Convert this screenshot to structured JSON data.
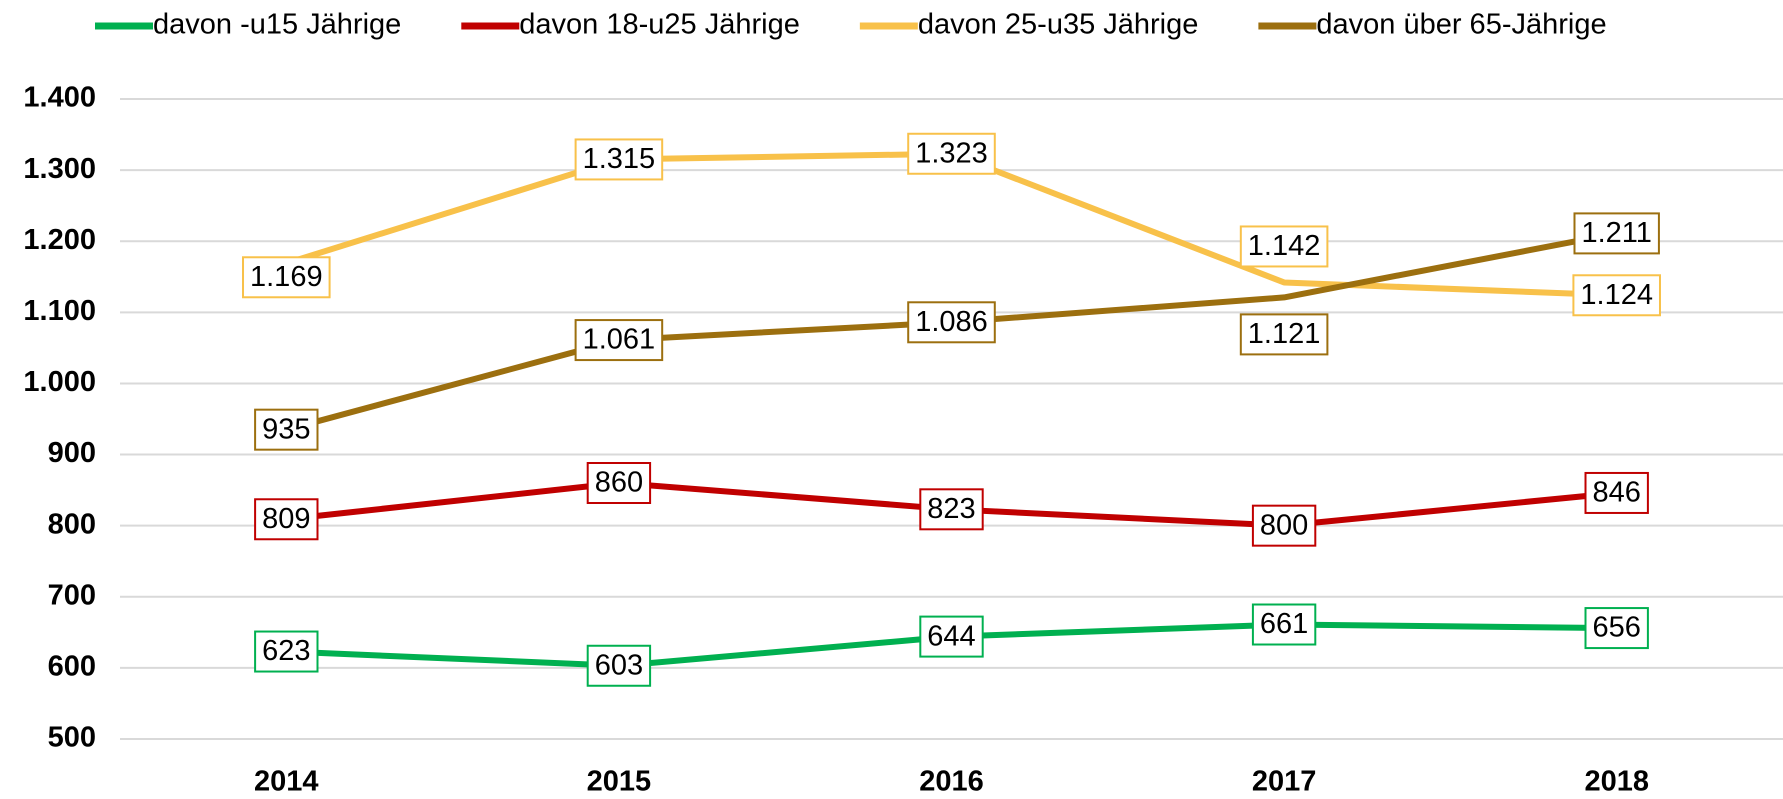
{
  "chart_data": {
    "type": "line",
    "categories": [
      "2014",
      "2015",
      "2016",
      "2017",
      "2018"
    ],
    "series": [
      {
        "name": "davon -u15 Jährige",
        "color": "#00b050",
        "values": [
          623,
          603,
          644,
          661,
          656
        ]
      },
      {
        "name": "davon 18-u25 Jährige",
        "color": "#c00000",
        "values": [
          809,
          860,
          823,
          800,
          846
        ]
      },
      {
        "name": "davon 25-u35 Jährige",
        "color": "#f8c14a",
        "values": [
          1169,
          1315,
          1323,
          1142,
          1124
        ],
        "value_labels": [
          "1.169",
          "1.315",
          "1.323",
          "1.142",
          "1.124"
        ]
      },
      {
        "name": "davon über 65-Jährige",
        "color": "#9c6f0f",
        "values": [
          935,
          1061,
          1086,
          1121,
          1211
        ],
        "value_labels": [
          "935",
          "1.061",
          "1.086",
          "1.121",
          "1.211"
        ]
      }
    ],
    "ylim": [
      500,
      1400
    ],
    "yticks": [
      500,
      600,
      700,
      800,
      900,
      {
        "value": 1000,
        "label": "1.000"
      },
      {
        "value": 1100,
        "label": "1.100"
      },
      {
        "value": 1200,
        "label": "1.200"
      },
      {
        "value": 1300,
        "label": "1.300"
      },
      {
        "value": 1400,
        "label": "1.400"
      }
    ],
    "grid": true,
    "legend": "top"
  }
}
